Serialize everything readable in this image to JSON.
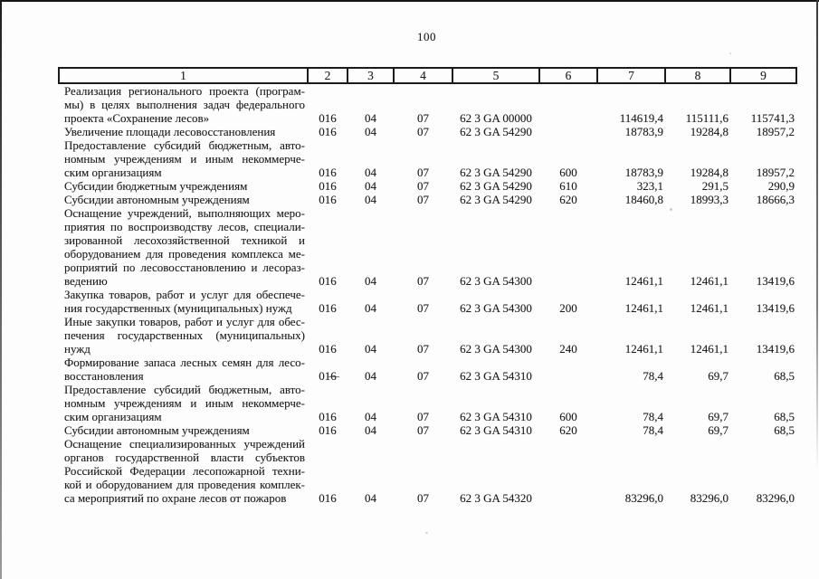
{
  "page_number": "100",
  "colors": {
    "ink": "#1f1f1f",
    "paper": "#fdfdfd"
  },
  "artifacts": {
    "stray_dash": "—"
  },
  "table": {
    "header": [
      "1",
      "2",
      "3",
      "4",
      "5",
      "6",
      "7",
      "8",
      "9"
    ],
    "rows": [
      {
        "name_lines": [
          "Реализация регионального проекта (програм-",
          "мы) в целях выполнения задач федерального",
          "проекта «Сохранение лесов»"
        ],
        "cells": [
          "016",
          "04",
          "07",
          "62 3 GA 00000",
          "",
          "114619,4",
          "115111,6",
          "115741,3"
        ]
      },
      {
        "name_lines": [
          "Увеличение площади лесовосстановления"
        ],
        "cells": [
          "016",
          "04",
          "07",
          "62 3 GA 54290",
          "",
          "18783,9",
          "19284,8",
          "18957,2"
        ]
      },
      {
        "name_lines": [
          "Предоставление субсидий бюджетным, авто-",
          "номным учреждениям и иным некоммерче-",
          "ским организациям"
        ],
        "cells": [
          "016",
          "04",
          "07",
          "62 3 GA 54290",
          "600",
          "18783,9",
          "19284,8",
          "18957,2"
        ]
      },
      {
        "name_lines": [
          "Субсидии бюджетным учреждениям"
        ],
        "cells": [
          "016",
          "04",
          "07",
          "62 3 GA 54290",
          "610",
          "323,1",
          "291,5",
          "290,9"
        ]
      },
      {
        "name_lines": [
          "Субсидии автономным учреждениям"
        ],
        "cells": [
          "016",
          "04",
          "07",
          "62 3 GA 54290",
          "620",
          "18460,8",
          "18993,3",
          "18666,3"
        ]
      },
      {
        "name_lines": [
          "Оснащение учреждений, выполняющих меро-",
          "приятия по воспроизводству лесов, специали-",
          "зированной лесохозяйственной техникой и",
          "оборудованием для проведения комплекса ме-",
          "роприятий по лесовосстановлению и лесораз-",
          "ведению"
        ],
        "cells": [
          "016",
          "04",
          "07",
          "62 3 GA 54300",
          "",
          "12461,1",
          "12461,1",
          "13419,6"
        ]
      },
      {
        "name_lines": [
          "Закупка товаров, работ и услуг для обеспече-",
          "ния государственных (муниципальных) нужд"
        ],
        "cells": [
          "016",
          "04",
          "07",
          "62 3 GA 54300",
          "200",
          "12461,1",
          "12461,1",
          "13419,6"
        ]
      },
      {
        "name_lines": [
          "Иные закупки товаров, работ и услуг для обес-",
          "печения государственных (муниципальных)",
          "нужд"
        ],
        "cells": [
          "016",
          "04",
          "07",
          "62 3 GA 54300",
          "240",
          "12461,1",
          "12461,1",
          "13419,6"
        ]
      },
      {
        "name_lines": [
          "Формирование запаса лесных семян для лесо-",
          "восстановления"
        ],
        "cells": [
          "016",
          "04",
          "07",
          "62 3 GA 54310",
          "",
          "78,4",
          "69,7",
          "68,5"
        ]
      },
      {
        "name_lines": [
          "Предоставление субсидий бюджетным, авто-",
          "номным учреждениям и иным некоммерче-",
          "ским организациям"
        ],
        "cells": [
          "016",
          "04",
          "07",
          "62 3 GA 54310",
          "600",
          "78,4",
          "69,7",
          "68,5"
        ]
      },
      {
        "name_lines": [
          "Субсидии автономным учреждениям"
        ],
        "cells": [
          "016",
          "04",
          "07",
          "62 3 GA 54310",
          "620",
          "78,4",
          "69,7",
          "68,5"
        ]
      },
      {
        "name_lines": [
          "Оснащение специализированных учреждений",
          "органов государственной власти субъектов",
          "Российской Федерации лесопожарной техни-",
          "кой и оборудованием для проведения комплек-",
          "са мероприятий по охране лесов от пожаров"
        ],
        "cells": [
          "016",
          "04",
          "07",
          "62 3 GA 54320",
          "",
          "83296,0",
          "83296,0",
          "83296,0"
        ]
      }
    ]
  }
}
